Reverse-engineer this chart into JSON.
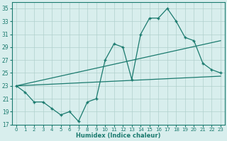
{
  "xlabel": "Humidex (Indice chaleur)",
  "bg_color": "#d8eeed",
  "line_color": "#1a7a6e",
  "xlim": [
    -0.5,
    23.5
  ],
  "ylim": [
    17,
    36
  ],
  "yticks": [
    17,
    19,
    21,
    23,
    25,
    27,
    29,
    31,
    33,
    35
  ],
  "xticks": [
    0,
    1,
    2,
    3,
    4,
    5,
    6,
    7,
    8,
    9,
    10,
    11,
    12,
    13,
    14,
    15,
    16,
    17,
    18,
    19,
    20,
    21,
    22,
    23
  ],
  "line1_x": [
    0,
    1,
    2,
    3,
    4,
    5,
    6,
    7,
    8,
    9,
    10,
    11,
    12,
    13,
    14,
    15,
    16,
    17,
    18,
    19,
    20,
    21,
    22,
    23
  ],
  "line1_y": [
    23,
    22,
    20.5,
    20.5,
    19.5,
    18.5,
    19.0,
    17.5,
    20.5,
    21.0,
    27.0,
    29.5,
    29.0,
    24.0,
    31.0,
    33.5,
    33.5,
    35.0,
    33.0,
    30.5,
    30.0,
    26.5,
    25.5,
    25.0
  ],
  "line2_x": [
    0,
    23
  ],
  "line2_y": [
    23,
    30.0
  ],
  "line3_x": [
    0,
    23
  ],
  "line3_y": [
    23,
    24.5
  ],
  "grid_color": "#b0d0cc",
  "grid_lw": 0.5
}
